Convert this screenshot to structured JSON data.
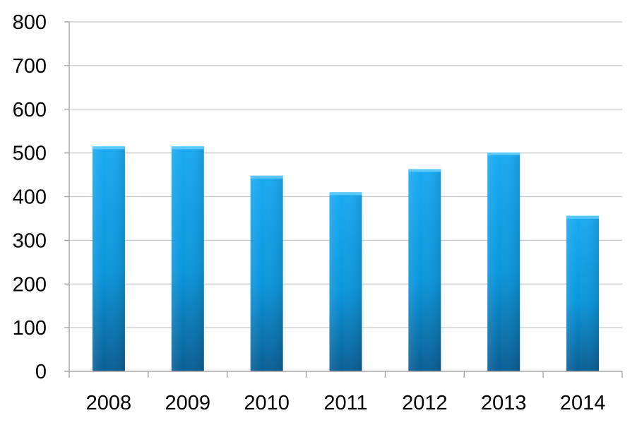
{
  "chart_data": {
    "type": "bar",
    "categories": [
      "2008",
      "2009",
      "2010",
      "2011",
      "2012",
      "2013",
      "2014"
    ],
    "values": [
      515,
      515,
      448,
      410,
      463,
      501,
      356
    ],
    "title": "",
    "xlabel": "",
    "ylabel": "",
    "ylim": [
      0,
      800
    ],
    "yticks": [
      0,
      100,
      200,
      300,
      400,
      500,
      600,
      700,
      800
    ],
    "grid": true,
    "legend": "none",
    "colors": {
      "bar_top": "#1aaaf2",
      "bar_mid": "#0b96dc",
      "bar_bottom": "#0a5e93",
      "bar_cap": "#5cc8f7"
    }
  }
}
